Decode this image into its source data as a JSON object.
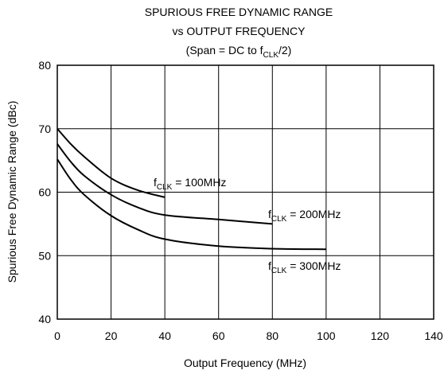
{
  "chart_data": {
    "type": "line",
    "title": [
      "SPURIOUS FREE DYNAMIC RANGE",
      "vs OUTPUT FREQUENCY"
    ],
    "subtitle_parts": [
      "(Span = DC to f",
      "CLK",
      "/2)"
    ],
    "x_label": "Output Frequency (MHz)",
    "y_label": "Spurious Free Dynamic Range (dBc)",
    "xlim": [
      0,
      140
    ],
    "xticks": [
      0,
      20,
      40,
      60,
      80,
      100,
      120,
      140
    ],
    "ylim": [
      40,
      80
    ],
    "yticks": [
      40,
      50,
      60,
      70,
      80
    ],
    "grid": true,
    "series": [
      {
        "label_parts": [
          "f",
          "CLK",
          " = 100MHz"
        ],
        "color": "#000000",
        "x": [
          0,
          5,
          10,
          20,
          30,
          40
        ],
        "values": [
          70,
          67.6,
          65.6,
          62.2,
          60.3,
          59.2
        ]
      },
      {
        "label_parts": [
          "f",
          "CLK",
          " = 200MHz"
        ],
        "color": "#000000",
        "x": [
          0,
          5,
          10,
          20,
          30,
          40,
          60,
          80
        ],
        "values": [
          67.6,
          64.8,
          62.6,
          59.6,
          57.6,
          56.4,
          55.7,
          55
        ]
      },
      {
        "label_parts": [
          "f",
          "CLK",
          " = 300MHz"
        ],
        "color": "#000000",
        "x": [
          0,
          5,
          10,
          20,
          30,
          40,
          60,
          80,
          100
        ],
        "values": [
          65.2,
          62,
          59.6,
          56.3,
          54.1,
          52.6,
          51.5,
          51.1,
          51
        ]
      }
    ]
  }
}
